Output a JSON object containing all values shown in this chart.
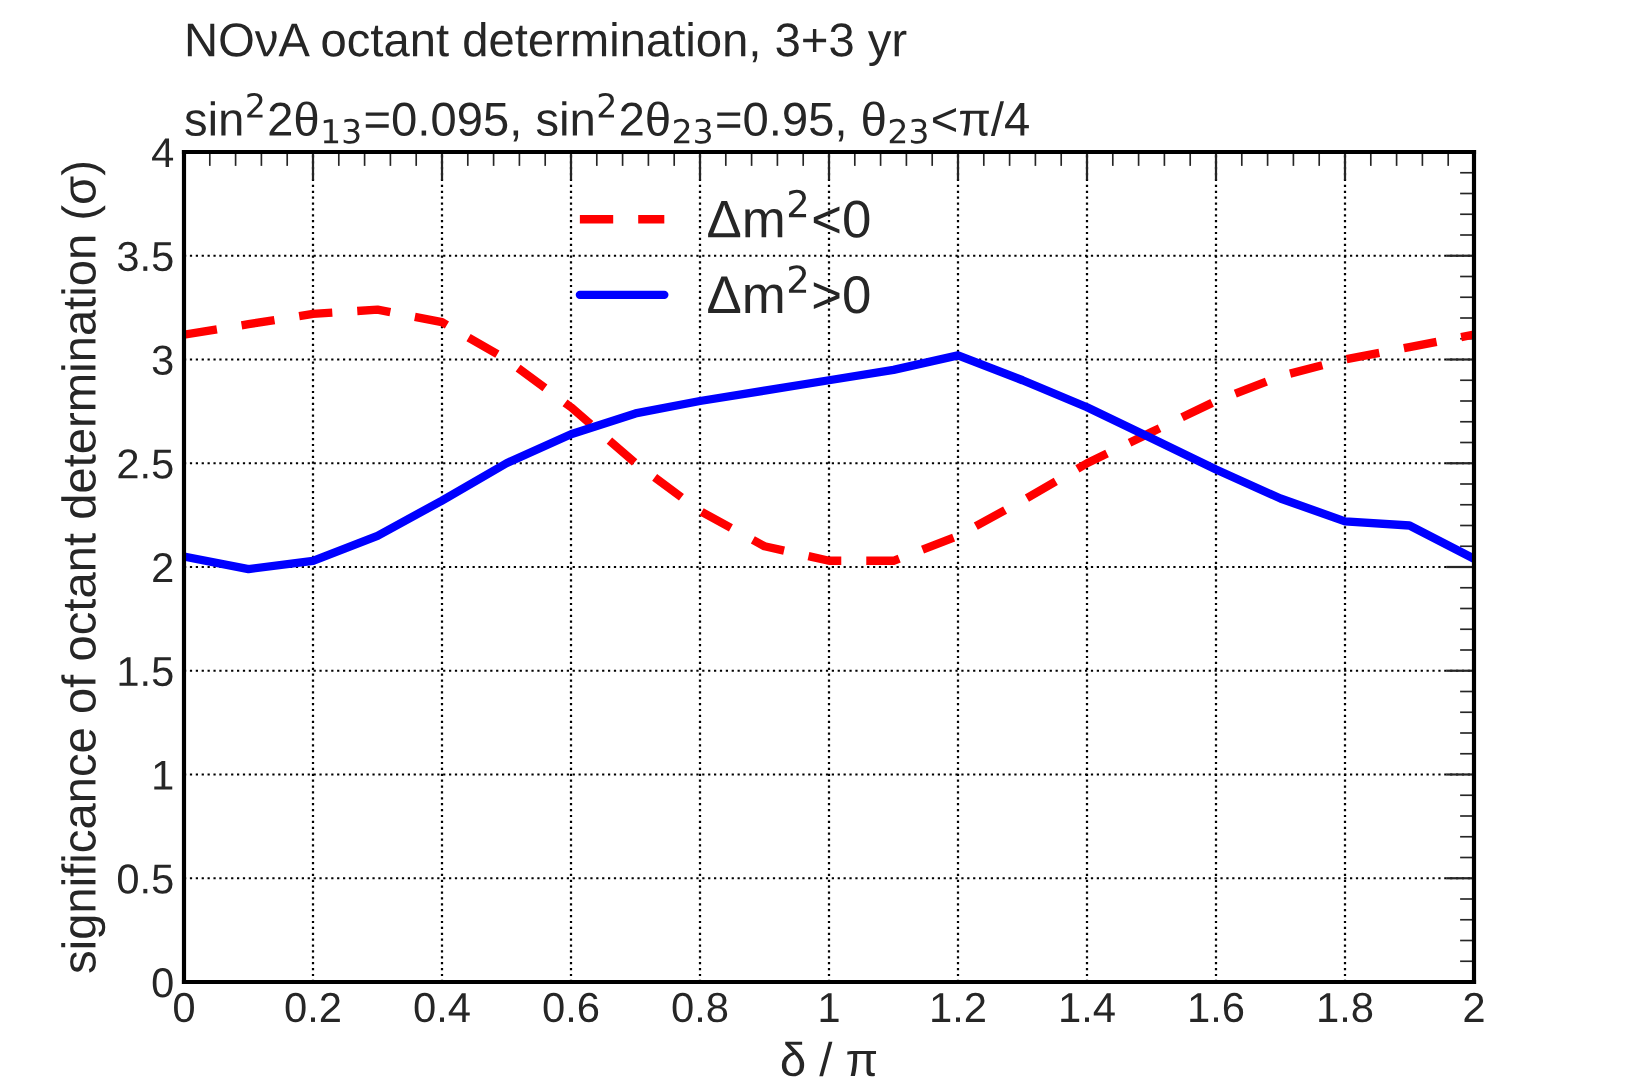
{
  "chart_data": {
    "type": "line",
    "title": "NOνA octant determination, 3+3 yr",
    "subtitle": "sin$^{2}$2θ$_{13}$=0.095, sin$^{2}$2θ$_{23}$=0.95, θ$_{23}$<π/4",
    "xlabel": "δ / π",
    "ylabel": "significance of octant determination (σ)",
    "x": [
      0,
      0.1,
      0.2,
      0.3,
      0.4,
      0.5,
      0.6,
      0.7,
      0.8,
      0.9,
      1.0,
      1.1,
      1.2,
      1.3,
      1.4,
      1.5,
      1.6,
      1.7,
      1.8,
      1.9,
      2.0
    ],
    "series": [
      {
        "name": "Δm$^{2}$<0",
        "color": "#ff0000",
        "line_style": "dashed",
        "values": [
          3.12,
          3.17,
          3.22,
          3.24,
          3.18,
          3.0,
          2.77,
          2.5,
          2.27,
          2.1,
          2.03,
          2.03,
          2.15,
          2.32,
          2.5,
          2.65,
          2.8,
          2.92,
          3.0,
          3.06,
          3.12
        ]
      },
      {
        "name": "Δm$^{2}$>0",
        "color": "#0000ff",
        "line_style": "solid",
        "values": [
          2.05,
          1.99,
          2.03,
          2.15,
          2.32,
          2.5,
          2.64,
          2.74,
          2.8,
          2.85,
          2.9,
          2.95,
          3.02,
          2.9,
          2.77,
          2.62,
          2.47,
          2.33,
          2.22,
          2.2,
          2.04
        ]
      }
    ],
    "xlim": [
      0,
      2
    ],
    "xticks": [
      0,
      0.2,
      0.4,
      0.6,
      0.8,
      1,
      1.2,
      1.4,
      1.6,
      1.8,
      2
    ],
    "ylim": [
      0,
      4
    ],
    "yticks": [
      0,
      0.5,
      1,
      1.5,
      2,
      2.5,
      3,
      3.5,
      4
    ],
    "grid": true,
    "legend": "top"
  }
}
